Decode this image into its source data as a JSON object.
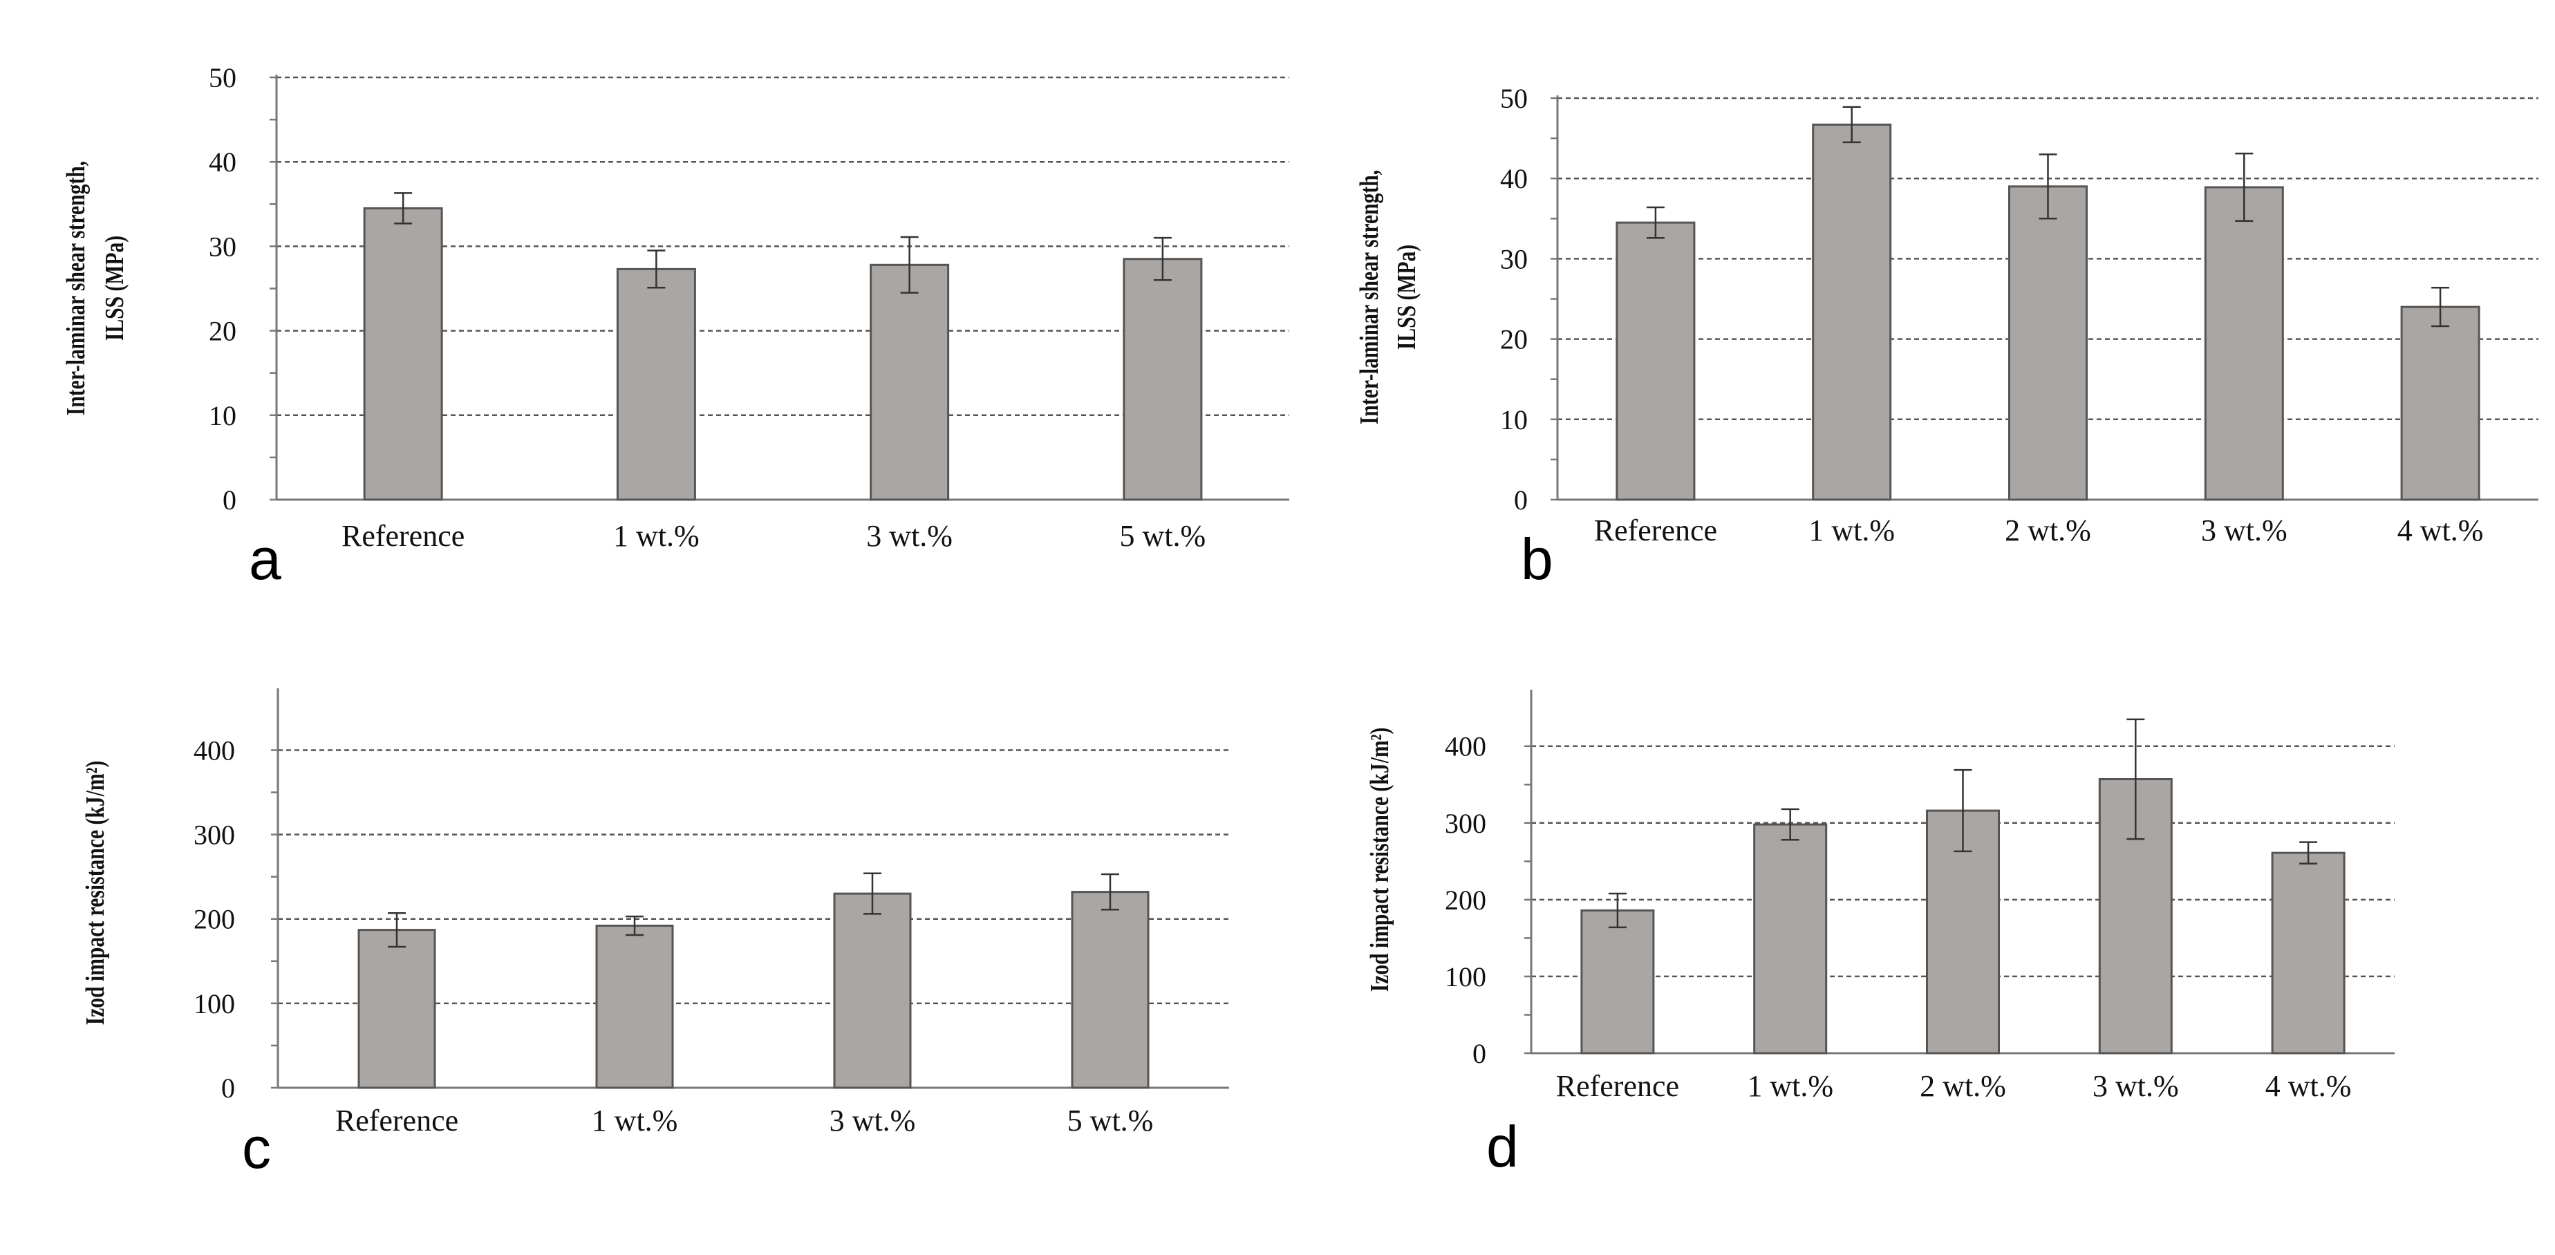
{
  "colors": {
    "bar_fill": "#aaa6a4",
    "bar_stroke": "#555555",
    "axis": "#777777",
    "grid": "#555555",
    "text": "#111111"
  },
  "chart_data": [
    {
      "id": "a",
      "panel_letter": "a",
      "type": "bar",
      "ylabel_lines": [
        "Inter-laminar shear strength,",
        "ILSS (MPa)"
      ],
      "ylim": [
        0,
        50
      ],
      "yticks": [
        0,
        10,
        20,
        30,
        40,
        50
      ],
      "grid": true,
      "categories": [
        "Reference",
        "1 wt.%",
        "3 wt.%",
        "5 wt.%"
      ],
      "values": [
        34.5,
        27.3,
        27.8,
        28.5
      ],
      "errors": [
        1.8,
        2.2,
        3.3,
        2.5
      ]
    },
    {
      "id": "b",
      "panel_letter": "b",
      "type": "bar",
      "ylabel_lines": [
        "Inter-laminar shear strength,",
        "ILSS (MPa)"
      ],
      "ylim": [
        0,
        50
      ],
      "yticks": [
        0,
        10,
        20,
        30,
        40,
        50
      ],
      "grid": true,
      "categories": [
        "Reference",
        "1 wt.%",
        "2 wt.%",
        "3 wt.%",
        "4 wt.%"
      ],
      "values": [
        34.5,
        46.7,
        39.0,
        38.9,
        24.0
      ],
      "errors": [
        1.9,
        2.2,
        4.0,
        4.2,
        2.4
      ]
    },
    {
      "id": "c",
      "panel_letter": "c",
      "type": "bar",
      "ylabel_lines": [
        "Izod impact resistance (kJ/m²)"
      ],
      "ylim": [
        0,
        470
      ],
      "yticks": [
        0,
        100,
        200,
        300,
        400
      ],
      "grid": true,
      "categories": [
        "Reference",
        "1 wt.%",
        "3 wt.%",
        "5 wt.%"
      ],
      "values": [
        187,
        192,
        230,
        232
      ],
      "errors": [
        20,
        11,
        24,
        21
      ]
    },
    {
      "id": "d",
      "panel_letter": "d",
      "type": "bar",
      "ylabel_lines": [
        "Izod impact resistance (kJ/m²)"
      ],
      "ylim": [
        0,
        470
      ],
      "yticks": [
        0,
        100,
        200,
        300,
        400
      ],
      "grid": true,
      "categories": [
        "Reference",
        "1 wt.%",
        "2 wt.%",
        "3 wt.%",
        "4 wt.%"
      ],
      "values": [
        186,
        298,
        316,
        357,
        261
      ],
      "errors": [
        22,
        20,
        53,
        78,
        14
      ]
    }
  ]
}
